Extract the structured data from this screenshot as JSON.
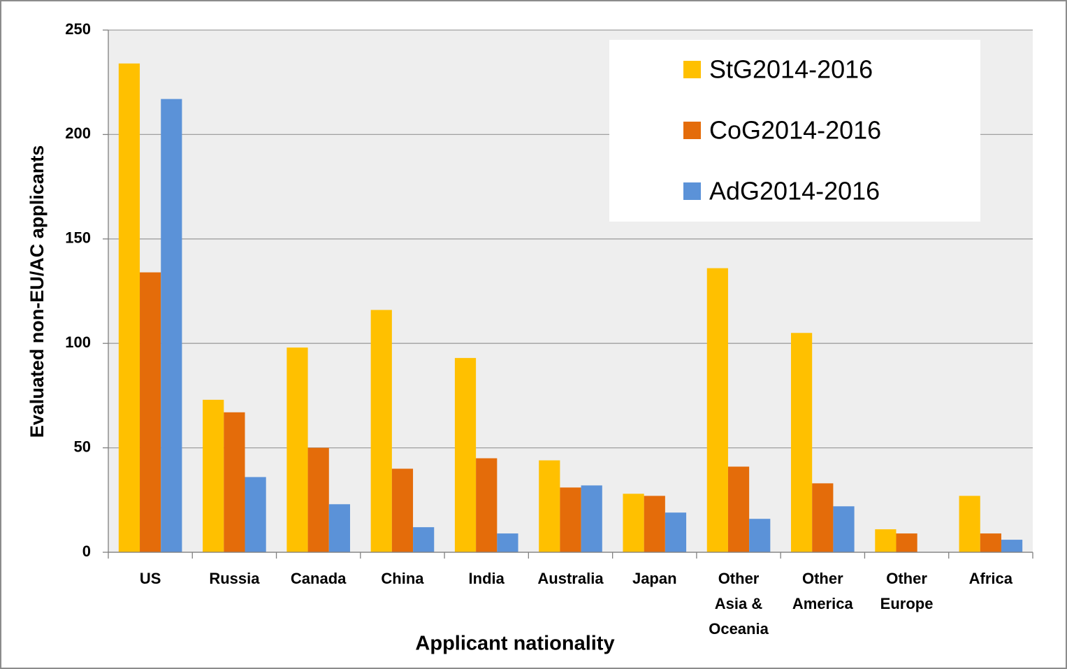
{
  "chart_data": {
    "type": "bar",
    "xlabel": "Applicant nationality",
    "ylabel": "Evaluated non-EU/AC applicants",
    "categories": [
      "US",
      "Russia",
      "Canada",
      "China",
      "India",
      "Australia",
      "Japan",
      "Other Asia & Oceania",
      "Other America",
      "Other Europe",
      "Africa"
    ],
    "series": [
      {
        "name": "StG2014-2016",
        "color": "#ffc000",
        "values": [
          234,
          73,
          98,
          116,
          93,
          44,
          28,
          136,
          105,
          11,
          27
        ]
      },
      {
        "name": "CoG2014-2016",
        "color": "#e46c0a",
        "values": [
          134,
          67,
          50,
          40,
          45,
          31,
          27,
          41,
          33,
          9,
          9
        ]
      },
      {
        "name": "AdG2014-2016",
        "color": "#5b92d8",
        "values": [
          217,
          36,
          23,
          12,
          9,
          32,
          19,
          16,
          22,
          null,
          6
        ]
      }
    ],
    "ylim": [
      0,
      250
    ],
    "yticks": [
      0,
      50,
      100,
      150,
      200,
      250
    ],
    "grid": true,
    "legend": "upper right"
  }
}
